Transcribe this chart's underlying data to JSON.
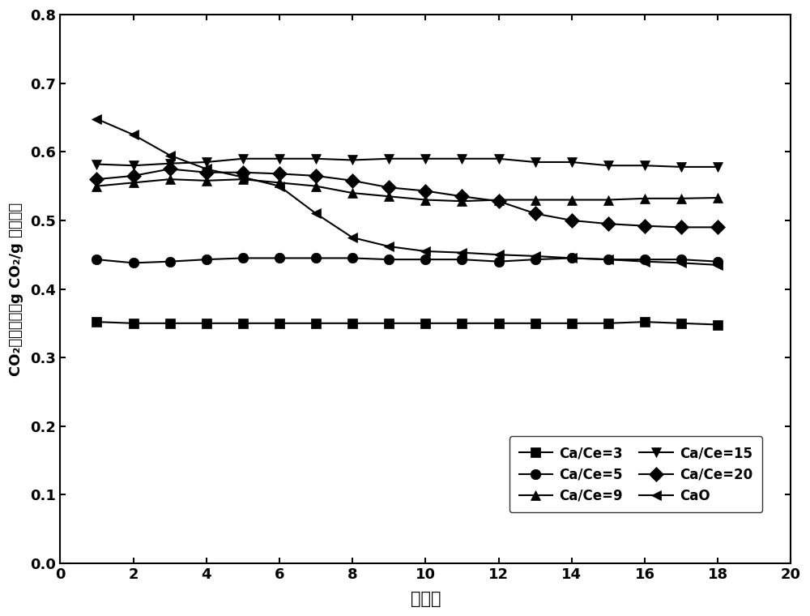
{
  "x": [
    1,
    2,
    3,
    4,
    5,
    6,
    7,
    8,
    9,
    10,
    11,
    12,
    13,
    14,
    15,
    16,
    17,
    18
  ],
  "series_order": [
    "Ca/Ce=3",
    "Ca/Ce=5",
    "Ca/Ce=9",
    "Ca/Ce=15",
    "Ca/Ce=20",
    "CaO"
  ],
  "series": {
    "Ca/Ce=3": [
      0.352,
      0.35,
      0.35,
      0.35,
      0.35,
      0.35,
      0.35,
      0.35,
      0.35,
      0.35,
      0.35,
      0.35,
      0.35,
      0.35,
      0.35,
      0.352,
      0.35,
      0.348
    ],
    "Ca/Ce=5": [
      0.443,
      0.438,
      0.44,
      0.443,
      0.445,
      0.445,
      0.445,
      0.445,
      0.443,
      0.443,
      0.443,
      0.44,
      0.443,
      0.445,
      0.443,
      0.443,
      0.443,
      0.44
    ],
    "Ca/Ce=9": [
      0.55,
      0.555,
      0.56,
      0.558,
      0.56,
      0.555,
      0.55,
      0.54,
      0.535,
      0.53,
      0.528,
      0.53,
      0.53,
      0.53,
      0.53,
      0.532,
      0.532,
      0.533
    ],
    "Ca/Ce=15": [
      0.582,
      0.58,
      0.583,
      0.585,
      0.59,
      0.59,
      0.59,
      0.588,
      0.59,
      0.59,
      0.59,
      0.59,
      0.585,
      0.585,
      0.58,
      0.58,
      0.578,
      0.578
    ],
    "Ca/Ce=20": [
      0.56,
      0.565,
      0.575,
      0.57,
      0.57,
      0.568,
      0.565,
      0.558,
      0.548,
      0.543,
      0.535,
      0.528,
      0.51,
      0.5,
      0.495,
      0.492,
      0.49,
      0.49
    ],
    "CaO": [
      0.648,
      0.625,
      0.595,
      0.575,
      0.563,
      0.55,
      0.51,
      0.475,
      0.462,
      0.455,
      0.453,
      0.45,
      0.448,
      0.445,
      0.443,
      0.44,
      0.438,
      0.435
    ]
  },
  "markers": {
    "Ca/Ce=3": "s",
    "Ca/Ce=5": "o",
    "Ca/Ce=9": "^",
    "Ca/Ce=15": "v",
    "Ca/Ce=20": "D",
    "CaO": "<"
  },
  "xlabel": "循环数",
  "ylabel_line1": "CO₂吸附容量（g CO₂/g 吸附剂）",
  "xlim": [
    0,
    20
  ],
  "ylim": [
    0.0,
    0.8
  ],
  "xticks": [
    0,
    2,
    4,
    6,
    8,
    10,
    12,
    14,
    16,
    18,
    20
  ],
  "yticks": [
    0.0,
    0.1,
    0.2,
    0.3,
    0.4,
    0.5,
    0.6,
    0.7,
    0.8
  ],
  "color": "black",
  "markersize": 9,
  "linewidth": 1.5,
  "legend_ncol": 2,
  "figsize": [
    10.0,
    7.6
  ],
  "dpi": 100
}
